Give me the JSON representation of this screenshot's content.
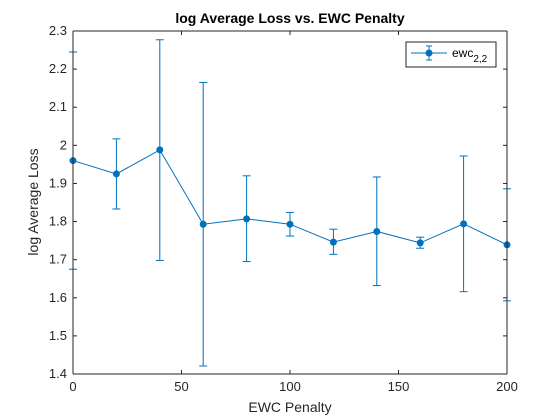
{
  "chart_data": {
    "type": "line",
    "title": "log Average Loss vs. EWC Penalty",
    "xlabel": "EWC Penalty",
    "ylabel": "log Average Loss",
    "xlim": [
      0,
      200
    ],
    "ylim": [
      1.4,
      2.3
    ],
    "xticks": [
      0,
      50,
      100,
      150,
      200
    ],
    "yticks": [
      1.4,
      1.5,
      1.6,
      1.7,
      1.8,
      1.9,
      2,
      2.1,
      2.2,
      2.3
    ],
    "grid": false,
    "legend_position": "top-right",
    "series": [
      {
        "name": "ewc",
        "name_subscript": "2,2",
        "color": "#0072BD",
        "x": [
          0,
          20,
          40,
          60,
          80,
          100,
          120,
          140,
          160,
          180,
          200
        ],
        "y": [
          1.96,
          1.925,
          1.988,
          1.793,
          1.807,
          1.793,
          1.746,
          1.774,
          1.744,
          1.794,
          1.739
        ],
        "err_low": [
          1.675,
          1.833,
          1.698,
          1.421,
          1.695,
          1.762,
          1.714,
          1.632,
          1.73,
          1.616,
          1.592
        ],
        "err_high": [
          2.245,
          2.017,
          2.277,
          2.165,
          1.92,
          1.824,
          1.78,
          1.917,
          1.759,
          1.972,
          1.886
        ]
      }
    ]
  }
}
